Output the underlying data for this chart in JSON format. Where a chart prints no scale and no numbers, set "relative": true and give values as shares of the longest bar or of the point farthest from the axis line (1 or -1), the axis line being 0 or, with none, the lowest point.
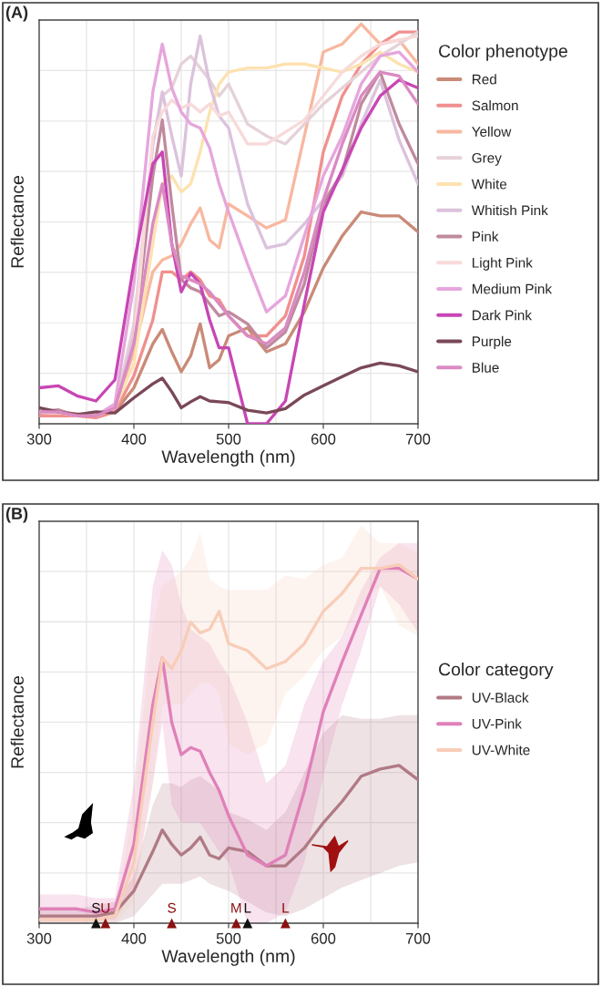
{
  "chart_data": [
    {
      "type": "line",
      "title": "(A)",
      "xlabel": "Wavelength (nm)",
      "ylabel": "Reflectance",
      "legend_title": "Color phenotype",
      "relative": true,
      "grid": true,
      "legend": "right",
      "xlim": [
        300,
        700
      ],
      "xticks": [
        300,
        400,
        500,
        600,
        700
      ],
      "x": [
        300,
        320,
        340,
        360,
        380,
        400,
        420,
        430,
        440,
        450,
        460,
        470,
        480,
        490,
        500,
        520,
        540,
        560,
        580,
        600,
        620,
        640,
        660,
        680,
        700
      ],
      "series": [
        {
          "name": "Red",
          "color": "#c98a78",
          "values": [
            0.027,
            0.03,
            0.025,
            0.02,
            0.03,
            0.09,
            0.2,
            0.236,
            0.18,
            0.13,
            0.17,
            0.25,
            0.14,
            0.16,
            0.22,
            0.24,
            0.18,
            0.2,
            0.28,
            0.39,
            0.47,
            0.53,
            0.52,
            0.52,
            0.48
          ]
        },
        {
          "name": "Salmon",
          "color": "#f0908e",
          "values": [
            0.02,
            0.02,
            0.02,
            0.015,
            0.03,
            0.12,
            0.26,
            0.38,
            0.38,
            0.36,
            0.38,
            0.36,
            0.32,
            0.31,
            0.27,
            0.22,
            0.22,
            0.27,
            0.42,
            0.68,
            0.82,
            0.9,
            0.95,
            0.98,
            0.98
          ]
        },
        {
          "name": "Yellow",
          "color": "#f8b8a0",
          "values": [
            0.03,
            0.03,
            0.02,
            0.02,
            0.04,
            0.18,
            0.38,
            0.41,
            0.42,
            0.45,
            0.5,
            0.54,
            0.46,
            0.44,
            0.55,
            0.52,
            0.49,
            0.51,
            0.72,
            0.93,
            0.95,
            1.0,
            0.95,
            0.96,
            0.9
          ]
        },
        {
          "name": "Grey",
          "color": "#e5d2d8",
          "values": [
            0.03,
            0.03,
            0.02,
            0.02,
            0.04,
            0.25,
            0.7,
            0.82,
            0.84,
            0.9,
            0.92,
            0.89,
            0.86,
            0.82,
            0.85,
            0.75,
            0.72,
            0.7,
            0.75,
            0.8,
            0.84,
            0.88,
            0.92,
            0.95,
            0.98
          ]
        },
        {
          "name": "White",
          "color": "#fde2b0",
          "values": [
            0.03,
            0.03,
            0.02,
            0.02,
            0.04,
            0.15,
            0.45,
            0.6,
            0.62,
            0.58,
            0.6,
            0.68,
            0.78,
            0.85,
            0.88,
            0.89,
            0.89,
            0.9,
            0.9,
            0.89,
            0.88,
            0.9,
            0.93,
            0.9,
            0.88
          ]
        },
        {
          "name": "Whitish Pink",
          "color": "#dcc2dc",
          "values": [
            0.03,
            0.03,
            0.02,
            0.02,
            0.04,
            0.22,
            0.7,
            0.83,
            0.72,
            0.62,
            0.85,
            0.97,
            0.85,
            0.77,
            0.74,
            0.55,
            0.44,
            0.45,
            0.5,
            0.56,
            0.62,
            0.75,
            0.86,
            0.71,
            0.6
          ]
        },
        {
          "name": "Pink",
          "color": "#c08a9e",
          "values": [
            0.03,
            0.035,
            0.02,
            0.02,
            0.04,
            0.2,
            0.62,
            0.76,
            0.55,
            0.36,
            0.34,
            0.33,
            0.3,
            0.27,
            0.28,
            0.25,
            0.19,
            0.23,
            0.35,
            0.55,
            0.63,
            0.8,
            0.88,
            0.75,
            0.65
          ]
        },
        {
          "name": "Light Pink",
          "color": "#f8dada",
          "values": [
            0.03,
            0.03,
            0.02,
            0.02,
            0.04,
            0.2,
            0.72,
            0.78,
            0.81,
            0.79,
            0.8,
            0.78,
            0.8,
            0.77,
            0.78,
            0.7,
            0.7,
            0.73,
            0.76,
            0.82,
            0.88,
            0.92,
            0.95,
            0.96,
            0.97
          ]
        },
        {
          "name": "Medium Pink",
          "color": "#e6a6dc",
          "values": [
            0.03,
            0.03,
            0.02,
            0.02,
            0.05,
            0.35,
            0.83,
            0.95,
            0.84,
            0.78,
            0.75,
            0.74,
            0.69,
            0.6,
            0.53,
            0.4,
            0.28,
            0.32,
            0.47,
            0.62,
            0.72,
            0.85,
            0.92,
            0.93,
            0.88
          ]
        },
        {
          "name": "Dark Pink",
          "color": "#c846b4",
          "values": [
            0.09,
            0.095,
            0.07,
            0.057,
            0.11,
            0.4,
            0.65,
            0.68,
            0.45,
            0.33,
            0.377,
            0.35,
            0.26,
            0.19,
            0.19,
            0.0,
            0.0,
            0.057,
            0.3,
            0.53,
            0.635,
            0.74,
            0.82,
            0.86,
            0.84
          ]
        },
        {
          "name": "Purple",
          "color": "#7a4858",
          "values": [
            0.04,
            0.03,
            0.023,
            0.03,
            0.027,
            0.065,
            0.1,
            0.114,
            0.08,
            0.04,
            0.055,
            0.068,
            0.057,
            0.055,
            0.053,
            0.034,
            0.027,
            0.038,
            0.072,
            0.095,
            0.118,
            0.14,
            0.152,
            0.145,
            0.13
          ]
        },
        {
          "name": "Blue",
          "color": "#da8ac2",
          "values": [
            0.03,
            0.03,
            0.02,
            0.02,
            0.04,
            0.2,
            0.5,
            0.6,
            0.45,
            0.37,
            0.36,
            0.35,
            0.33,
            0.3,
            0.27,
            0.22,
            0.2,
            0.24,
            0.38,
            0.56,
            0.7,
            0.82,
            0.88,
            0.87,
            0.8
          ]
        }
      ]
    },
    {
      "type": "line",
      "title": "(B)",
      "xlabel": "Wavelength (nm)",
      "ylabel": "Reflectance",
      "legend_title": "Color category",
      "annotations": [
        {
          "text": "S",
          "x": 360,
          "y": 0
        },
        {
          "text": "U",
          "x": 370,
          "y": 0
        },
        {
          "text": "S",
          "x": 440,
          "y": 0
        },
        {
          "text": "M",
          "x": 508,
          "y": 0
        },
        {
          "text": "L",
          "x": 520,
          "y": 0
        },
        {
          "text": "L",
          "x": 560,
          "y": 0
        }
      ],
      "relative": true,
      "grid": true,
      "legend": "right",
      "xlim": [
        300,
        700
      ],
      "xticks": [
        300,
        400,
        500,
        600,
        700
      ],
      "x": [
        300,
        320,
        340,
        360,
        380,
        400,
        420,
        430,
        440,
        450,
        460,
        470,
        480,
        490,
        500,
        520,
        540,
        560,
        580,
        600,
        620,
        640,
        660,
        680,
        700
      ],
      "series": [
        {
          "name": "UV-Black",
          "color": "#b07a84",
          "values": [
            0.02,
            0.02,
            0.02,
            0.02,
            0.03,
            0.09,
            0.2,
            0.26,
            0.22,
            0.19,
            0.21,
            0.24,
            0.19,
            0.18,
            0.21,
            0.2,
            0.16,
            0.16,
            0.21,
            0.28,
            0.34,
            0.41,
            0.43,
            0.44,
            0.4
          ],
          "lower": [
            0,
            0,
            0,
            0,
            0,
            0.02,
            0.08,
            0.11,
            0.11,
            0.11,
            0.12,
            0.13,
            0.11,
            0.1,
            0.09,
            0.06,
            0.03,
            0.02,
            0.04,
            0.07,
            0.1,
            0.12,
            0.14,
            0.16,
            0.17
          ],
          "upper": [
            0.04,
            0.04,
            0.04,
            0.05,
            0.06,
            0.13,
            0.33,
            0.39,
            0.39,
            0.38,
            0.4,
            0.41,
            0.39,
            0.37,
            0.31,
            0.29,
            0.26,
            0.31,
            0.42,
            0.53,
            0.58,
            0.57,
            0.57,
            0.58,
            0.58
          ]
        },
        {
          "name": "UV-Pink",
          "color": "#e080b8",
          "values": [
            0.04,
            0.04,
            0.04,
            0.03,
            0.04,
            0.22,
            0.61,
            0.74,
            0.56,
            0.47,
            0.49,
            0.48,
            0.42,
            0.37,
            0.3,
            0.19,
            0.16,
            0.19,
            0.37,
            0.59,
            0.73,
            0.86,
            0.99,
            0.99,
            0.96
          ],
          "lower": [
            0.01,
            0.01,
            0.01,
            0.01,
            0.01,
            0.09,
            0.39,
            0.56,
            0.33,
            0.28,
            0.28,
            0.28,
            0.24,
            0.2,
            0.17,
            0,
            0,
            0.03,
            0.17,
            0.41,
            0.61,
            0.76,
            0.94,
            0.89,
            0.81
          ],
          "upper": [
            0.08,
            0.08,
            0.08,
            0.07,
            0.07,
            0.39,
            0.94,
            1.04,
            1.0,
            0.89,
            0.82,
            0.8,
            0.78,
            0.73,
            0.69,
            0.56,
            0.39,
            0.44,
            0.61,
            0.73,
            0.8,
            0.93,
            1.02,
            1.06,
            1.06
          ]
        },
        {
          "name": "UV-White",
          "color": "#f8cdb8",
          "values": [
            0.01,
            0.01,
            0.01,
            0.01,
            0.02,
            0.17,
            0.56,
            0.74,
            0.71,
            0.76,
            0.84,
            0.81,
            0.82,
            0.87,
            0.78,
            0.76,
            0.71,
            0.73,
            0.78,
            0.87,
            0.92,
            0.99,
            0.99,
            1.0,
            0.96
          ],
          "lower": [
            0,
            0,
            0,
            0,
            0,
            0.06,
            0.39,
            0.61,
            0.61,
            0.61,
            0.64,
            0.67,
            0.67,
            0.64,
            0.5,
            0.47,
            0.5,
            0.64,
            0.69,
            0.76,
            0.8,
            0.89,
            0.94,
            0.83,
            0.8
          ],
          "upper": [
            0.02,
            0.02,
            0.02,
            0.02,
            0.03,
            0.33,
            0.83,
            0.94,
            0.96,
            0.98,
            1.02,
            1.09,
            0.96,
            0.94,
            0.93,
            0.93,
            0.93,
            0.97,
            0.96,
            1.0,
            1.02,
            1.11,
            1.06,
            1.06,
            1.03
          ]
        },
        {
          "type": "scatter",
          "marker": "triangle",
          "color": "#111111",
          "x": [
            360,
            520
          ],
          "values": [
            0,
            0
          ]
        },
        {
          "type": "scatter",
          "marker": "triangle",
          "color": "#8b1010",
          "x": [
            370,
            440,
            508,
            560
          ],
          "values": [
            0,
            0,
            0,
            0
          ]
        }
      ]
    }
  ]
}
